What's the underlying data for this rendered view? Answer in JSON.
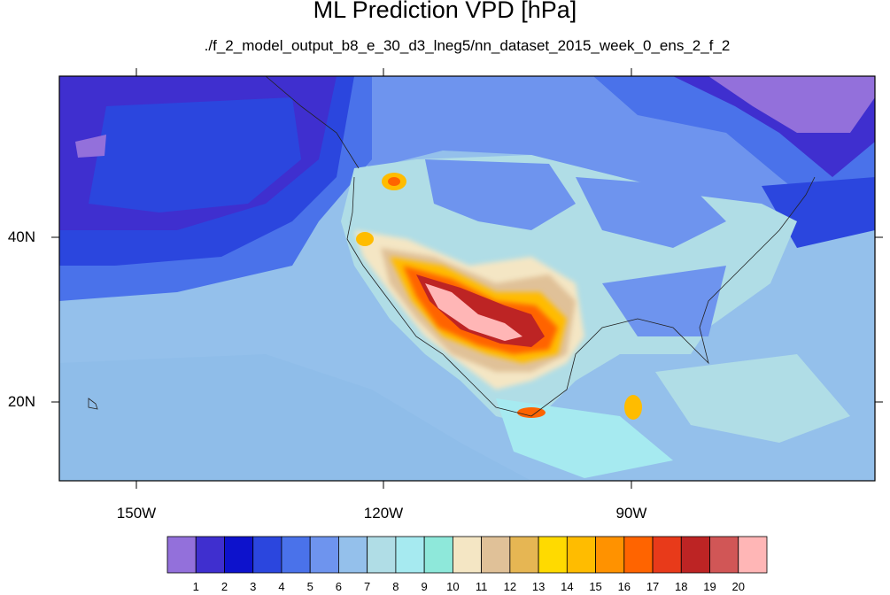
{
  "title": "ML Prediction VPD [hPa]",
  "subtitle": "./f_2_model_output_b8_e_30_d3_lneg5/nn_dataset_2015_week_0_ens_2_f_2",
  "lat_labels": [
    "40N",
    "20N"
  ],
  "lon_labels": [
    "150W",
    "120W",
    "90W"
  ],
  "colorbar": {
    "labels": [
      "1",
      "2",
      "3",
      "4",
      "5",
      "6",
      "7",
      "8",
      "9",
      "10",
      "11",
      "12",
      "13",
      "14",
      "15",
      "16",
      "17",
      "18",
      "19",
      "20"
    ],
    "colors": [
      "#9370db",
      "#3f2fcf",
      "#0d12cc",
      "#2b46de",
      "#4a72ea",
      "#6e94ee",
      "#94c0eb",
      "#b0dde6",
      "#a6eaf0",
      "#8ee8da",
      "#f4e6c4",
      "#e0c198",
      "#e6b653",
      "#ffda00",
      "#ffbc00",
      "#ff9200",
      "#ff6400",
      "#e83a1a",
      "#bd2424",
      "#d15656",
      "#ffb6b6"
    ]
  }
}
